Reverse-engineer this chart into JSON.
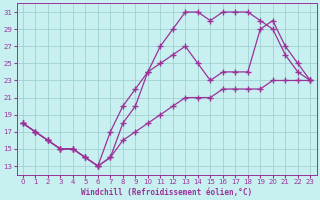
{
  "bg_color": "#c8f0f0",
  "line_color": "#993399",
  "grid_color": "#99cccc",
  "xlabel": "Windchill (Refroidissement éolien,°C)",
  "xlim": [
    -0.5,
    23.5
  ],
  "ylim": [
    12,
    32
  ],
  "yticks": [
    13,
    15,
    17,
    19,
    21,
    23,
    25,
    27,
    29,
    31
  ],
  "xticks": [
    0,
    1,
    2,
    3,
    4,
    5,
    6,
    7,
    8,
    9,
    10,
    11,
    12,
    13,
    14,
    15,
    16,
    17,
    18,
    19,
    20,
    21,
    22,
    23
  ],
  "c1_x": [
    0,
    1,
    2,
    3,
    4,
    5,
    6,
    7,
    8,
    9,
    10,
    11,
    12,
    13,
    14,
    15,
    16,
    17,
    18,
    19,
    20,
    21,
    22,
    23
  ],
  "c1_y": [
    18,
    17,
    16,
    15,
    15,
    14,
    13,
    14,
    18,
    20,
    24,
    27,
    29,
    31,
    31,
    30,
    31,
    31,
    31,
    30,
    29,
    26,
    24,
    23
  ],
  "c2_x": [
    0,
    1,
    2,
    3,
    4,
    5,
    6,
    7,
    8,
    9,
    10,
    11,
    12,
    13,
    14,
    15,
    16,
    17,
    18,
    19,
    20,
    21,
    22,
    23
  ],
  "c2_y": [
    18,
    17,
    16,
    15,
    15,
    14,
    13,
    17,
    20,
    22,
    24,
    25,
    26,
    27,
    25,
    23,
    24,
    24,
    24,
    29,
    30,
    27,
    25,
    23
  ],
  "c3_x": [
    0,
    1,
    2,
    3,
    4,
    5,
    6,
    7,
    8,
    9,
    10,
    11,
    12,
    13,
    14,
    15,
    16,
    17,
    18,
    19,
    20,
    21,
    22,
    23
  ],
  "c3_y": [
    18,
    17,
    16,
    15,
    15,
    14,
    13,
    14,
    16,
    17,
    18,
    19,
    20,
    21,
    21,
    21,
    22,
    22,
    22,
    22,
    23,
    23,
    23,
    23
  ]
}
